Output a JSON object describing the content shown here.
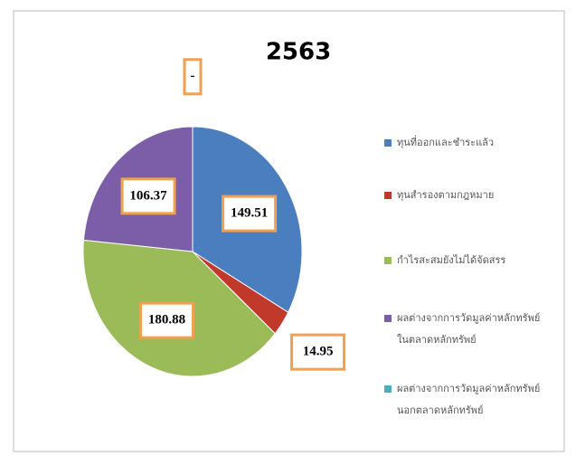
{
  "chart_data": {
    "type": "pie",
    "title": "2563",
    "categories": [
      "ทุนที่ออกและชำระแล้ว",
      "ทุนสำรองตามกฎหมาย",
      "กำไรสะสมยังไม่ได้จัดสรร",
      "ผลต่างจากการวัดมูลค่าหลักทรัพย์ในตลาดหลักทรัพย์",
      "ผลต่างจากการวัดมูลค่าหลักทรัพย์นอกตลาดหลักทรัพย์"
    ],
    "values": [
      149.51,
      14.95,
      180.88,
      106.37,
      0
    ],
    "value_labels": [
      "149.51",
      "14.95",
      "180.88",
      "106.37",
      "-"
    ],
    "colors": [
      "#4a7ebf",
      "#c0392b",
      "#9bbb59",
      "#7b5ea7",
      "#4bacc6"
    ],
    "legend": "right"
  }
}
